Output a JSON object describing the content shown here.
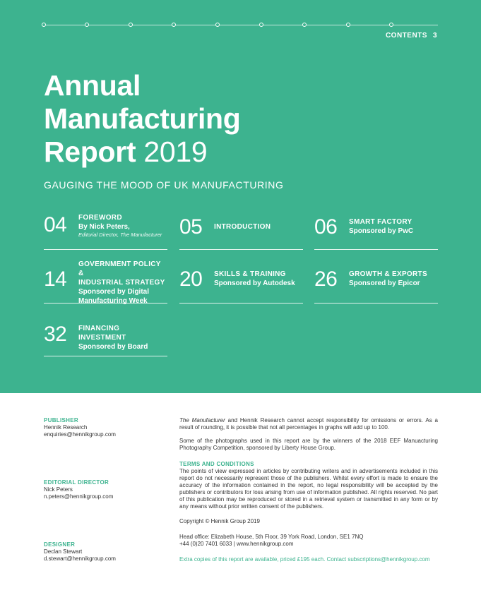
{
  "header": {
    "contents_label": "CONTENTS",
    "page_number": "3"
  },
  "cover": {
    "title_line1": "Annual",
    "title_line2": "Manufacturing",
    "title_line3": "Report",
    "title_year": "2019",
    "subtitle": "GAUGING THE MOOD OF UK MANUFACTURING"
  },
  "toc": [
    {
      "num": "04",
      "head": "FOREWORD",
      "sub": "By Nick Peters,",
      "note_prefix": "Editorial Director, ",
      "note_italic": "The Manufacturer"
    },
    {
      "num": "05",
      "head": "INTRODUCTION"
    },
    {
      "num": "06",
      "head": "SMART FACTORY",
      "sub": "Sponsored by PwC"
    },
    {
      "num": "14",
      "head": "GOVERNMENT POLICY &",
      "head2": "INDUSTRIAL STRATEGY",
      "sub": "Sponsored by Digital",
      "sub2": "Manufacturing Week"
    },
    {
      "num": "20",
      "head": "SKILLS & TRAINING",
      "sub": "Sponsored by Autodesk"
    },
    {
      "num": "26",
      "head": "GROWTH & EXPORTS",
      "sub": "Sponsored by Epicor"
    },
    {
      "num": "32",
      "head": "FINANCING INVESTMENT",
      "sub": "Sponsored by Board"
    }
  ],
  "credits": {
    "publisher": {
      "heading": "PUBLISHER",
      "name": "Hennik Research",
      "email": "enquiries@hennikgroup.com"
    },
    "editorial": {
      "heading": "EDITORIAL DIRECTOR",
      "name": "Nick Peters",
      "email": "n.peters@hennikgroup.com"
    },
    "designer": {
      "heading": "DESIGNER",
      "name": "Declan Stewart",
      "email": "d.stewart@hennikgroup.com"
    }
  },
  "legal": {
    "para1_italic": "The Manufacturer",
    "para1_rest": " and Hennik Research cannot accept responsibility for omissions or errors. As a result of rounding, it is possible that not all percentages in graphs will add up to 100.",
    "para2": "Some of the photographs used in this report are by the winners of the 2018 EEF Manuacturing Photography Competition, sponsored by Liberty House Group.",
    "terms_heading": "TERMS AND CONDITIONS",
    "terms_body": "The points of view expressed in articles by contributing writers and in advertisements included in this report do not necessarily represent those of the publishers. Whilst every effort is made to ensure the accuracy of the information contained in the report, no legal responsibility will be accepted by the publishers or contributors for loss arising from use of information published. All rights reserved. No part of this publication may be reproduced or stored in a retrieval system or transmitted in any form or by any means without prior written consent of the publishers.",
    "copyright": "Copyright © Hennik Group 2019",
    "head_office": "Head office: Elizabeth House, 5th Floor, 39 York Road, London, SE1 7NQ",
    "contact_line": "+44 (0)20 7401 6033  |  www.hennikgroup.com",
    "extra_copies": "Extra copies of this report are available, priced £195 each.  Contact ",
    "extra_email": "subscriptions@hennikgroup.com"
  },
  "colors": {
    "brand_green": "#3db38f"
  }
}
